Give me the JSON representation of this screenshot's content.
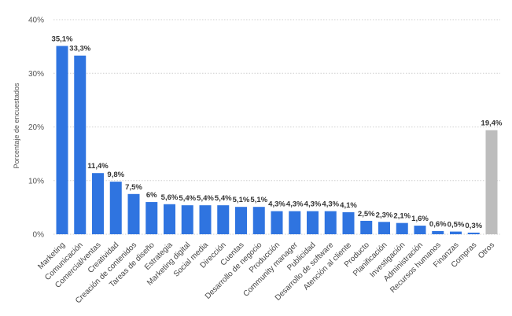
{
  "chart_data": {
    "type": "bar",
    "title": "",
    "xlabel": "",
    "ylabel": "Porcentaje de encuestados",
    "ylim": [
      0,
      40
    ],
    "yticks": [
      0,
      10,
      20,
      30,
      40
    ],
    "ytick_labels": [
      "0%",
      "10%",
      "20%",
      "30%",
      "40%"
    ],
    "grid": true,
    "categories": [
      "Marketing",
      "Comunicación",
      "Comercial/ventas",
      "Creatividad",
      "Creación de contenidos",
      "Tareas de diseño",
      "Estrategia",
      "Marketing digital",
      "Social media",
      "Dirección",
      "Cuentas",
      "Desarrollo de negocio",
      "Producción",
      "Community manager",
      "Publicidad",
      "Desarrollo de software",
      "Atención al cliente",
      "Producto",
      "Planificación",
      "Investigación",
      "Administración",
      "Recursos humanos",
      "Finanzas",
      "Compras",
      "Otros"
    ],
    "values": [
      35.1,
      33.3,
      11.4,
      9.8,
      7.5,
      6,
      5.6,
      5.4,
      5.4,
      5.4,
      5.1,
      5.1,
      4.3,
      4.3,
      4.3,
      4.3,
      4.1,
      2.5,
      2.3,
      2.1,
      1.6,
      0.6,
      0.5,
      0.3,
      19.4
    ],
    "value_labels": [
      "35,1%",
      "33,3%",
      "11,4%",
      "9,8%",
      "7,5%",
      "6%",
      "5,6%",
      "5,4%",
      "5,4%",
      "5,4%",
      "5,1%",
      "5,1%",
      "4,3%",
      "4,3%",
      "4,3%",
      "4,3%",
      "4,1%",
      "2,5%",
      "2,3%",
      "2,1%",
      "1,6%",
      "0,6%",
      "0,5%",
      "0,3%",
      "19,4%"
    ],
    "colors": {
      "bar": "#2f74e0",
      "highlight": "#bdbdbd",
      "grid": "#cfcfcf",
      "text": "#555555"
    },
    "highlight_categories": [
      "Otros"
    ]
  }
}
